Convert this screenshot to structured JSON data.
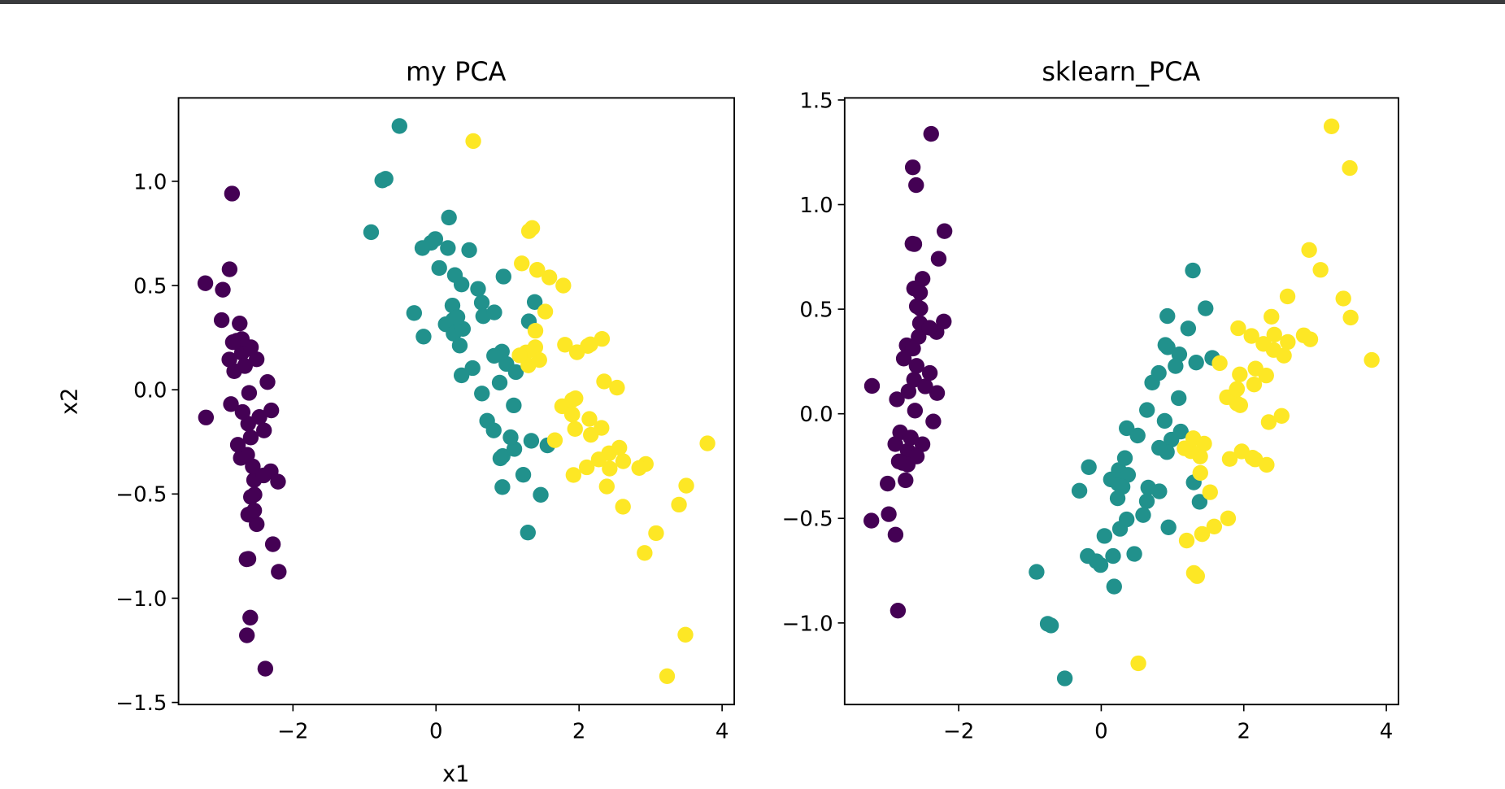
{
  "colors": {
    "class0": "#440154",
    "class1": "#21918c",
    "class2": "#fde725"
  },
  "chart_data": [
    {
      "type": "scatter",
      "title": "my PCA",
      "xlabel": "x1",
      "ylabel": "x2",
      "xlim": [
        -3.6,
        4.17
      ],
      "ylim": [
        -1.51,
        1.4
      ],
      "xticks": [
        -2,
        0,
        2,
        4
      ],
      "xtick_labels": [
        "−2",
        "0",
        "2",
        "4"
      ],
      "yticks": [
        -1.5,
        -1.0,
        -0.5,
        0.0,
        0.5,
        1.0
      ],
      "ytick_labels": [
        "−1.5",
        "−1.0",
        "−0.5",
        "0.0",
        "0.5",
        "1.0"
      ],
      "grid": false,
      "series": [
        {
          "color": "#440154",
          "x": [
            -2.684,
            -2.714,
            -2.889,
            -2.745,
            -2.729,
            -2.281,
            -2.821,
            -2.626,
            -2.886,
            -2.673,
            -2.507,
            -2.613,
            -2.787,
            -3.225,
            -2.644,
            -2.386,
            -2.623,
            -2.648,
            -2.199,
            -2.587,
            -2.311,
            -2.543,
            -3.216,
            -2.303,
            -2.356,
            -2.508,
            -2.469,
            -2.562,
            -2.64,
            -2.633,
            -2.588,
            -2.41,
            -2.648,
            -2.597,
            -2.673,
            -2.867,
            -2.625,
            -2.673,
            -2.981,
            -2.59,
            -2.77,
            -2.852,
            -2.997,
            -2.405,
            -2.209,
            -2.715,
            -2.538,
            -2.84,
            -2.542,
            -2.704
          ],
          "y": [
            -0.319,
            0.177,
            0.145,
            0.318,
            -0.327,
            -0.741,
            0.089,
            -0.163,
            0.578,
            0.114,
            -0.645,
            -0.015,
            0.235,
            0.511,
            -1.178,
            -1.338,
            -0.811,
            -0.312,
            -0.873,
            -0.514,
            -0.391,
            -0.433,
            -0.133,
            -0.099,
            0.037,
            0.146,
            -0.131,
            -0.368,
            -0.312,
            0.196,
            0.204,
            -0.411,
            -0.813,
            -1.093,
            0.114,
            -0.069,
            -0.599,
            0.114,
            0.48,
            -0.229,
            -0.264,
            0.941,
            0.334,
            -0.195,
            -0.441,
            0.243,
            -0.503,
            0.228,
            -0.579,
            -0.107
          ]
        },
        {
          "color": "#21918c",
          "x": [
            1.285,
            0.932,
            1.464,
            0.181,
            1.087,
            0.64,
            1.095,
            -0.751,
            1.043,
            -0.01,
            -0.511,
            0.511,
            0.264,
            0.984,
            -0.174,
            0.928,
            0.66,
            0.236,
            0.944,
            0.045,
            1.116,
            0.357,
            1.298,
            0.921,
            0.715,
            0.9,
            1.332,
            1.558,
            0.813,
            -0.306,
            -0.068,
            -0.19,
            0.136,
            1.38,
            0.588,
            0.807,
            1.22,
            0.815,
            0.246,
            0.166,
            0.464,
            0.89,
            0.23,
            -0.705,
            0.357,
            0.332,
            0.376,
            0.642,
            -0.907,
            0.299
          ],
          "y": [
            -0.685,
            -0.318,
            -0.504,
            0.826,
            -0.075,
            0.418,
            -0.284,
            1.004,
            -0.228,
            0.723,
            1.265,
            0.104,
            0.55,
            0.124,
            0.255,
            -0.467,
            0.353,
            0.334,
            0.543,
            0.584,
            0.085,
            0.069,
            0.328,
            0.183,
            -0.149,
            -0.329,
            -0.245,
            -0.267,
            0.163,
            0.368,
            0.705,
            0.68,
            0.314,
            0.421,
            0.484,
            -0.195,
            -0.408,
            0.371,
            0.269,
            0.68,
            0.67,
            0.034,
            0.404,
            1.012,
            0.505,
            0.212,
            0.292,
            -0.018,
            0.756,
            0.349
          ]
        },
        {
          "color": "#fde725",
          "x": [
            2.531,
            1.415,
            2.617,
            1.971,
            2.35,
            3.397,
            0.521,
            2.933,
            2.321,
            2.917,
            1.662,
            1.803,
            2.165,
            1.345,
            1.585,
            1.905,
            1.95,
            3.487,
            3.795,
            1.3,
            2.428,
            1.199,
            3.499,
            1.388,
            2.276,
            2.614,
            1.258,
            1.291,
            2.123,
            2.388,
            2.841,
            3.231,
            2.159,
            1.444,
            1.78,
            3.077,
            2.145,
            1.905,
            1.169,
            2.108,
            2.314,
            1.922,
            1.415,
            2.563,
            2.419,
            1.944,
            1.527,
            1.764,
            1.901,
            1.39
          ],
          "y": [
            0.01,
            0.575,
            -0.343,
            0.18,
            0.04,
            -0.551,
            1.193,
            -0.356,
            0.244,
            -0.783,
            -0.242,
            0.216,
            -0.216,
            0.776,
            0.539,
            -0.119,
            -0.041,
            -1.175,
            -0.257,
            0.761,
            -0.378,
            0.606,
            -0.46,
            0.204,
            -0.334,
            -0.561,
            0.179,
            0.117,
            0.21,
            -0.464,
            -0.375,
            -1.374,
            0.218,
            0.143,
            0.5,
            -0.688,
            -0.14,
            -0.049,
            0.165,
            -0.372,
            -0.183,
            -0.409,
            0.575,
            -0.278,
            -0.305,
            -0.188,
            0.375,
            -0.079,
            -0.117,
            0.283
          ]
        }
      ]
    },
    {
      "type": "scatter",
      "title": "sklearn_PCA",
      "xlabel": "",
      "ylabel": "",
      "xlim": [
        -3.6,
        4.17
      ],
      "ylim": [
        -1.39,
        1.51
      ],
      "xticks": [
        -2,
        0,
        2,
        4
      ],
      "xtick_labels": [
        "−2",
        "0",
        "2",
        "4"
      ],
      "yticks": [
        -1.0,
        -0.5,
        0.0,
        0.5,
        1.0,
        1.5
      ],
      "ytick_labels": [
        "−1.0",
        "−0.5",
        "0.0",
        "0.5",
        "1.0",
        "1.5"
      ],
      "grid": false,
      "series": [
        {
          "color": "#440154",
          "x": [
            -2.684,
            -2.714,
            -2.889,
            -2.745,
            -2.729,
            -2.281,
            -2.821,
            -2.626,
            -2.886,
            -2.673,
            -2.507,
            -2.613,
            -2.787,
            -3.225,
            -2.644,
            -2.386,
            -2.623,
            -2.648,
            -2.199,
            -2.587,
            -2.311,
            -2.543,
            -3.216,
            -2.303,
            -2.356,
            -2.508,
            -2.469,
            -2.562,
            -2.64,
            -2.633,
            -2.588,
            -2.41,
            -2.648,
            -2.597,
            -2.673,
            -2.867,
            -2.625,
            -2.673,
            -2.981,
            -2.59,
            -2.77,
            -2.852,
            -2.997,
            -2.405,
            -2.209,
            -2.715,
            -2.538,
            -2.84,
            -2.542,
            -2.704
          ],
          "y": [
            0.319,
            -0.177,
            -0.145,
            -0.318,
            0.327,
            0.741,
            -0.089,
            0.163,
            -0.578,
            -0.114,
            0.645,
            0.015,
            -0.235,
            -0.511,
            1.178,
            1.338,
            0.811,
            0.312,
            0.873,
            0.514,
            0.391,
            0.433,
            0.133,
            0.099,
            -0.037,
            -0.146,
            0.131,
            0.368,
            0.312,
            -0.196,
            -0.204,
            0.411,
            0.813,
            1.093,
            -0.114,
            0.069,
            0.599,
            -0.114,
            -0.48,
            0.229,
            0.264,
            -0.941,
            -0.334,
            0.195,
            0.441,
            -0.243,
            0.503,
            -0.228,
            0.579,
            0.107
          ]
        },
        {
          "color": "#21918c",
          "x": [
            1.285,
            0.932,
            1.464,
            0.181,
            1.087,
            0.64,
            1.095,
            -0.751,
            1.043,
            -0.01,
            -0.511,
            0.511,
            0.264,
            0.984,
            -0.174,
            0.928,
            0.66,
            0.236,
            0.944,
            0.045,
            1.116,
            0.357,
            1.298,
            0.921,
            0.715,
            0.9,
            1.332,
            1.558,
            0.813,
            -0.306,
            -0.068,
            -0.19,
            0.136,
            1.38,
            0.588,
            0.807,
            1.22,
            0.815,
            0.246,
            0.166,
            0.464,
            0.89,
            0.23,
            -0.705,
            0.357,
            0.332,
            0.376,
            0.642,
            -0.907,
            0.299
          ],
          "y": [
            0.685,
            0.318,
            0.504,
            -0.826,
            0.075,
            -0.418,
            0.284,
            -1.004,
            0.228,
            -0.723,
            -1.265,
            -0.104,
            -0.55,
            -0.124,
            -0.255,
            0.467,
            -0.353,
            -0.334,
            -0.543,
            -0.584,
            -0.085,
            -0.069,
            -0.328,
            -0.183,
            0.149,
            0.329,
            0.245,
            0.267,
            -0.163,
            -0.368,
            -0.705,
            -0.68,
            -0.314,
            -0.421,
            -0.484,
            0.195,
            0.408,
            -0.371,
            -0.269,
            -0.68,
            -0.67,
            -0.034,
            -0.404,
            -1.012,
            -0.505,
            -0.212,
            -0.292,
            0.018,
            -0.756,
            -0.349
          ]
        },
        {
          "color": "#fde725",
          "x": [
            2.531,
            1.415,
            2.617,
            1.971,
            2.35,
            3.397,
            0.521,
            2.933,
            2.321,
            2.917,
            1.662,
            1.803,
            2.165,
            1.345,
            1.585,
            1.905,
            1.95,
            3.487,
            3.795,
            1.3,
            2.428,
            1.199,
            3.499,
            1.388,
            2.276,
            2.614,
            1.258,
            1.291,
            2.123,
            2.388,
            2.841,
            3.231,
            2.159,
            1.444,
            1.78,
            3.077,
            2.145,
            1.905,
            1.169,
            2.108,
            2.314,
            1.922,
            1.415,
            2.563,
            2.419,
            1.944,
            1.527,
            1.764,
            1.901,
            1.39
          ],
          "y": [
            -0.01,
            -0.575,
            0.343,
            -0.18,
            -0.04,
            0.551,
            -1.193,
            0.356,
            -0.244,
            0.783,
            0.242,
            -0.216,
            0.216,
            -0.776,
            -0.539,
            0.119,
            0.041,
            1.175,
            0.257,
            -0.761,
            0.378,
            -0.606,
            0.46,
            -0.204,
            0.334,
            0.561,
            -0.179,
            -0.117,
            -0.21,
            0.464,
            0.375,
            1.374,
            -0.218,
            -0.143,
            -0.5,
            0.688,
            0.14,
            0.049,
            -0.165,
            0.372,
            0.183,
            0.409,
            -0.575,
            0.278,
            0.305,
            0.188,
            -0.375,
            0.079,
            0.117,
            -0.283
          ]
        }
      ]
    }
  ]
}
